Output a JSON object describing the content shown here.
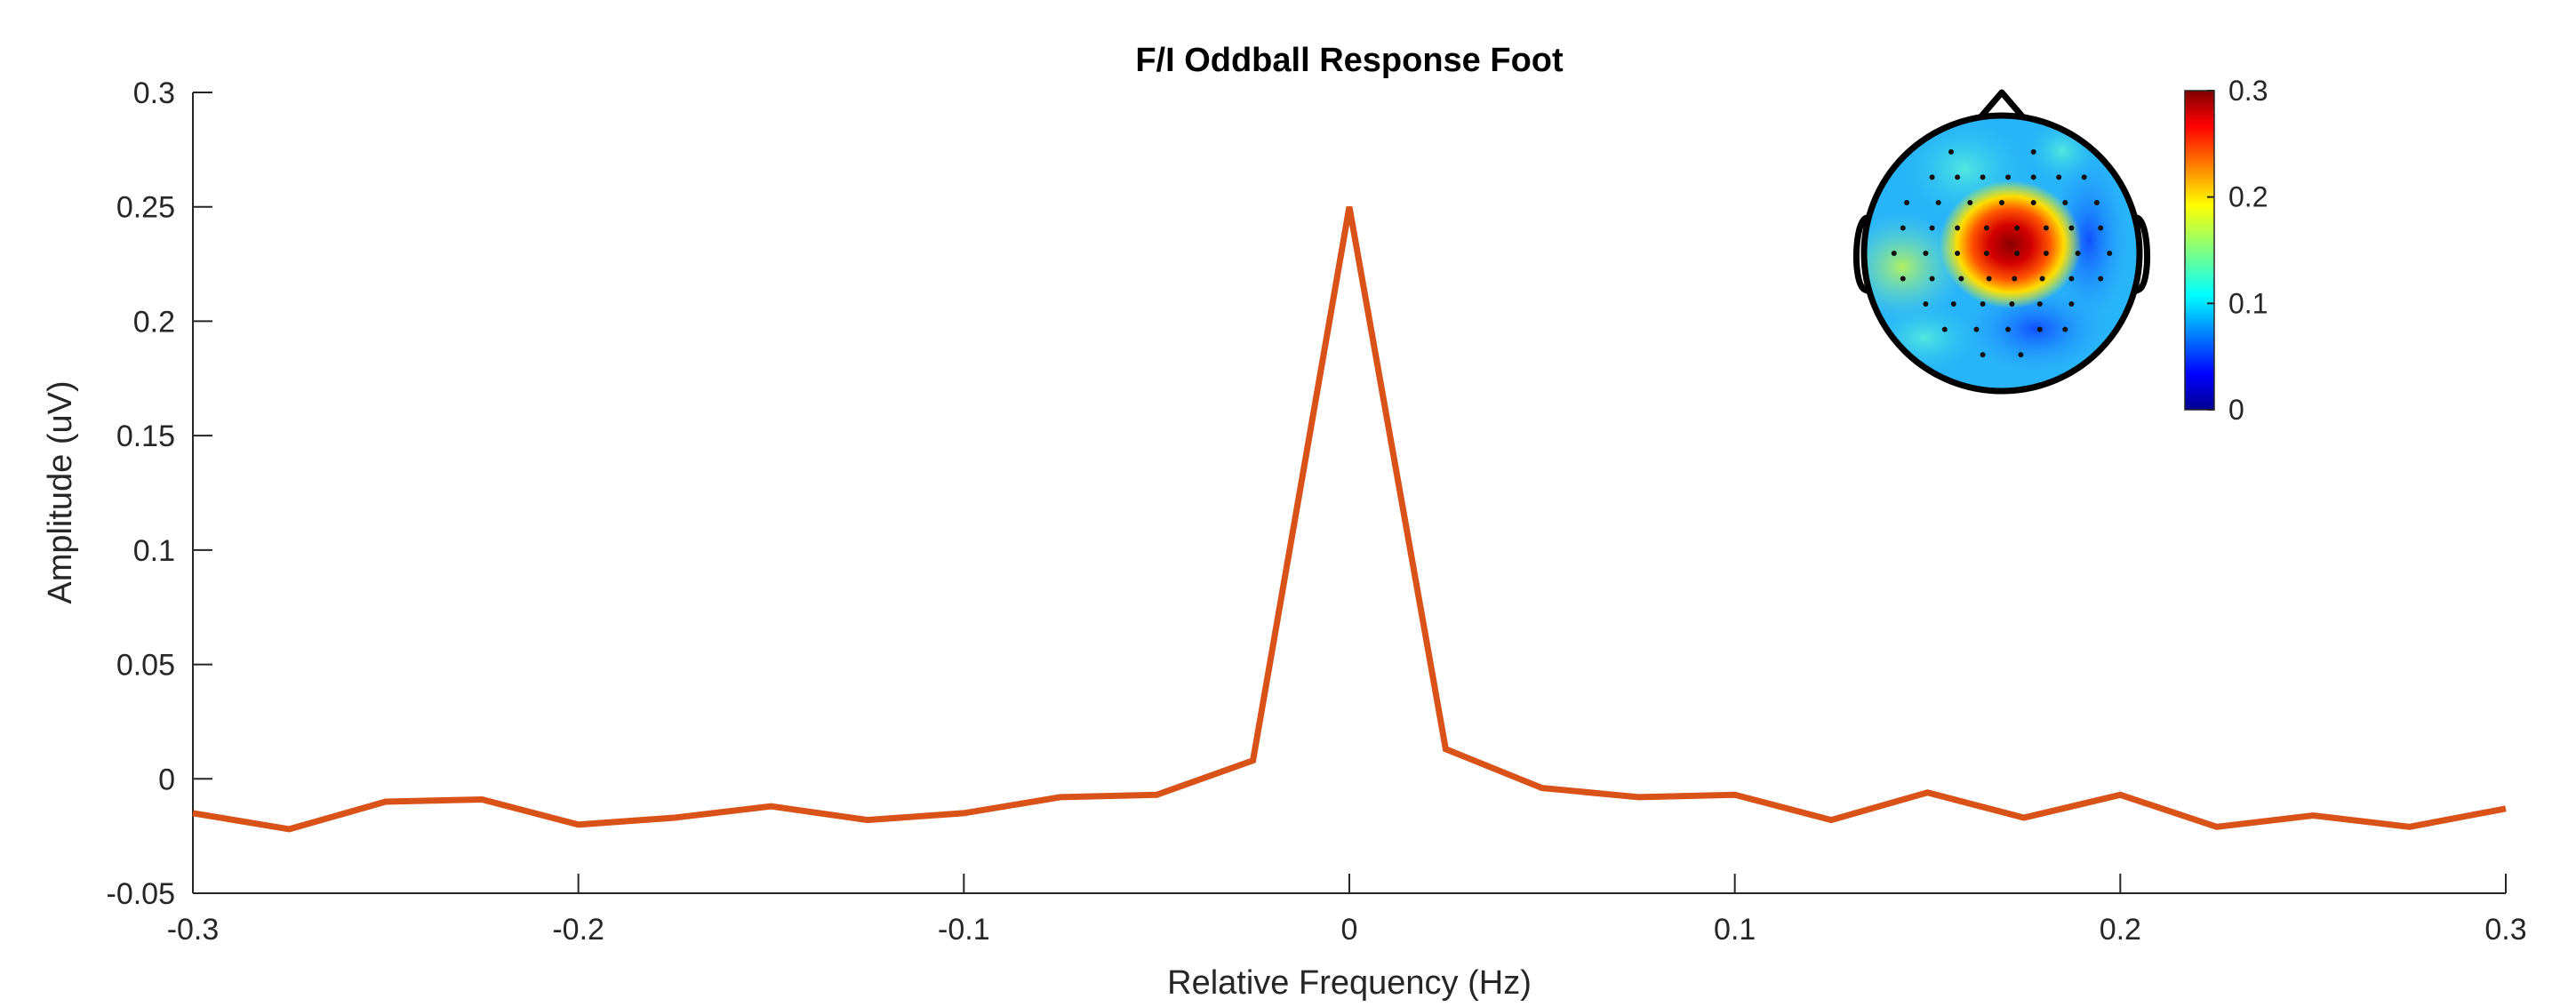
{
  "chart_data": {
    "type": "line",
    "title": "F/I Oddball Response Foot",
    "xlabel": "Relative Frequency (Hz)",
    "ylabel": "Amplitude (uV)",
    "xlim": [
      -0.3,
      0.3
    ],
    "ylim": [
      -0.05,
      0.3
    ],
    "xticks": [
      -0.3,
      -0.2,
      -0.1,
      0,
      0.1,
      0.2,
      0.3
    ],
    "xtick_labels": [
      "-0.3",
      "-0.2",
      "-0.1",
      "0",
      "0.1",
      "0.2",
      "0.3"
    ],
    "yticks": [
      -0.05,
      0,
      0.05,
      0.1,
      0.15,
      0.2,
      0.25,
      0.3
    ],
    "ytick_labels": [
      "-0.05",
      "0",
      "0.05",
      "0.1",
      "0.15",
      "0.2",
      "0.25",
      "0.3"
    ],
    "grid": false,
    "series": [
      {
        "color": "#D95319",
        "x": [
          -0.3,
          -0.275,
          -0.25,
          -0.225,
          -0.2,
          -0.175,
          -0.15,
          -0.125,
          -0.1,
          -0.075,
          -0.05,
          -0.025,
          0,
          0.025,
          0.05,
          0.075,
          0.1,
          0.125,
          0.15,
          0.175,
          0.2,
          0.225,
          0.25,
          0.275,
          0.3
        ],
        "y": [
          -0.015,
          -0.022,
          -0.01,
          -0.009,
          -0.02,
          -0.017,
          -0.012,
          -0.018,
          -0.015,
          -0.008,
          -0.007,
          0.008,
          0.25,
          0.013,
          -0.004,
          -0.008,
          -0.007,
          -0.018,
          -0.006,
          -0.017,
          -0.007,
          -0.021,
          -0.016,
          -0.021,
          -0.013
        ]
      }
    ],
    "inset": {
      "type": "heatmap",
      "description_kind": "scalp topography",
      "colormap": "jet",
      "colorbar": {
        "ticks": [
          0,
          0.1,
          0.2,
          0.3
        ],
        "tick_labels": [
          "0",
          "0.1",
          "0.2",
          "0.3"
        ],
        "range": [
          0,
          0.3
        ],
        "placement": "top-right"
      }
    }
  }
}
